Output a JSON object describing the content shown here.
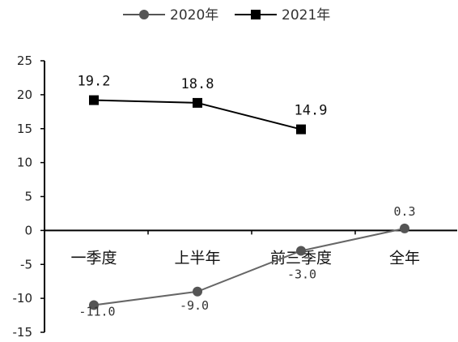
{
  "chart_data": {
    "type": "line",
    "title": "",
    "xlabel": "",
    "ylabel": "",
    "categories": [
      "一季度",
      "上半年",
      "前三季度",
      "全年"
    ],
    "ylim": [
      -15,
      25
    ],
    "yticks": [
      -15,
      -10,
      -5,
      0,
      5,
      10,
      15,
      20,
      25
    ],
    "legend_position": "top",
    "grid": false,
    "series": [
      {
        "name": "2020年",
        "values": [
          -11.0,
          -9.0,
          -3.0,
          0.3
        ],
        "labels": [
          "-11.0",
          "-9.0",
          "-3.0",
          "0.3"
        ],
        "marker": "circle",
        "color": "#555555"
      },
      {
        "name": "2021年",
        "values": [
          19.2,
          18.8,
          14.9,
          null
        ],
        "labels": [
          "19.2",
          "18.8",
          "14.9",
          ""
        ],
        "marker": "square",
        "color": "#000000"
      }
    ]
  }
}
